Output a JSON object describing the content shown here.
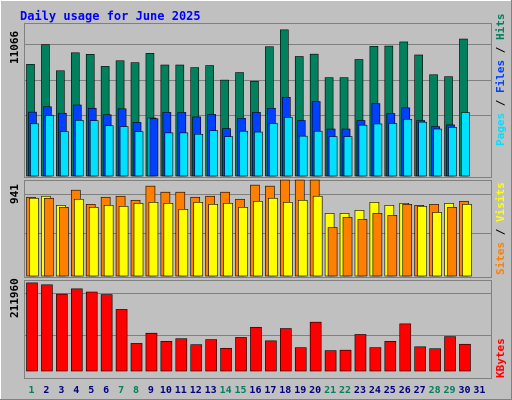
{
  "title": "Daily usage for June 2025",
  "colors": {
    "background": "#C0C0C0",
    "title": "#0000FF",
    "hits": "#00805C",
    "files": "#0040FF",
    "pages": "#00E0FF",
    "visits": "#FFFF00",
    "sites": "#FF8000",
    "kbytes": "#FF0000",
    "weekend_label": "#00805C",
    "weekday_label": "#000080"
  },
  "chart_data": {
    "type": "bar",
    "title": "Daily usage for June 2025",
    "days": [
      "1",
      "2",
      "3",
      "4",
      "5",
      "6",
      "7",
      "8",
      "9",
      "10",
      "11",
      "12",
      "13",
      "14",
      "15",
      "16",
      "17",
      "18",
      "19",
      "20",
      "21",
      "22",
      "23",
      "24",
      "25",
      "26",
      "27",
      "28",
      "29",
      "30",
      "31"
    ],
    "weekend_days": [
      1,
      7,
      8,
      14,
      15,
      21,
      22,
      28,
      29
    ],
    "panels": [
      {
        "id": "hits_panel",
        "max_label": "11066",
        "ymax": 11066,
        "legend": [
          {
            "text": "Hits",
            "series": "hits"
          },
          {
            "text": "Files",
            "series": "files"
          },
          {
            "text": "Pages",
            "series": "pages"
          }
        ],
        "series": [
          {
            "name": "Hits",
            "key": "hits",
            "values": [
              8130,
              9560,
              7660,
              8970,
              8860,
              7980,
              8390,
              8250,
              8930,
              8080,
              8080,
              7890,
              8040,
              6980,
              7530,
              6900,
              9410,
              10640,
              8700,
              8870,
              7160,
              7160,
              8480,
              9440,
              9460,
              9760,
              8810,
              7370,
              7230,
              9970,
              0
            ]
          },
          {
            "name": "Files",
            "key": "files",
            "values": [
              4650,
              5040,
              4570,
              5170,
              4930,
              4460,
              4890,
              3900,
              4170,
              4630,
              4630,
              4300,
              4480,
              3450,
              4200,
              4630,
              4930,
              5730,
              4040,
              5420,
              3420,
              3420,
              4040,
              5270,
              4550,
              4960,
              4040,
              3600,
              3720,
              0,
              0
            ]
          },
          {
            "name": "Pages",
            "key": "pages",
            "values": [
              3800,
              4400,
              3230,
              4050,
              4030,
              3660,
              3600,
              3230,
              4220,
              3140,
              3140,
              3040,
              3300,
              2870,
              3260,
              3200,
              3820,
              4270,
              2900,
              3260,
              2870,
              2870,
              3700,
              3790,
              3820,
              4130,
              3920,
              3420,
              3540,
              4620,
              0
            ]
          }
        ]
      },
      {
        "id": "visits_panel",
        "max_label": "941",
        "ymax": 941,
        "legend": [
          {
            "text": "Visits",
            "series": "visits"
          },
          {
            "text": "Sites",
            "series": "sites"
          }
        ],
        "series": [
          {
            "name": "Visits",
            "key": "visits",
            "values": [
              770,
              790,
              700,
              760,
              680,
              700,
              690,
              720,
              730,
              720,
              660,
              730,
              710,
              720,
              680,
              740,
              770,
              730,
              750,
              790,
              620,
              620,
              650,
              730,
              700,
              720,
              690,
              630,
              720,
              710,
              0
            ]
          },
          {
            "name": "Sites",
            "key": "sites",
            "values": [
              780,
              770,
              680,
              850,
              710,
              780,
              790,
              750,
              890,
              830,
              830,
              780,
              790,
              830,
              760,
              900,
              890,
              950,
              950,
              950,
              480,
              580,
              560,
              620,
              600,
              710,
              700,
              710,
              680,
              740,
              0
            ]
          }
        ]
      },
      {
        "id": "kbytes_panel",
        "max_label": "211960",
        "ymax": 211960,
        "legend": [
          {
            "text": "KBytes",
            "series": "kbytes"
          }
        ],
        "series": [
          {
            "name": "KBytes",
            "key": "kbytes",
            "values": [
              207500,
              203000,
              181000,
              193500,
              186000,
              180000,
              145000,
              65000,
              89000,
              70000,
              76000,
              62000,
              74000,
              53500,
              79000,
              103000,
              71000,
              100000,
              55000,
              115000,
              48000,
              49000,
              86000,
              55000,
              70000,
              111000,
              57000,
              52500,
              81000,
              63000,
              0
            ]
          }
        ]
      }
    ]
  }
}
